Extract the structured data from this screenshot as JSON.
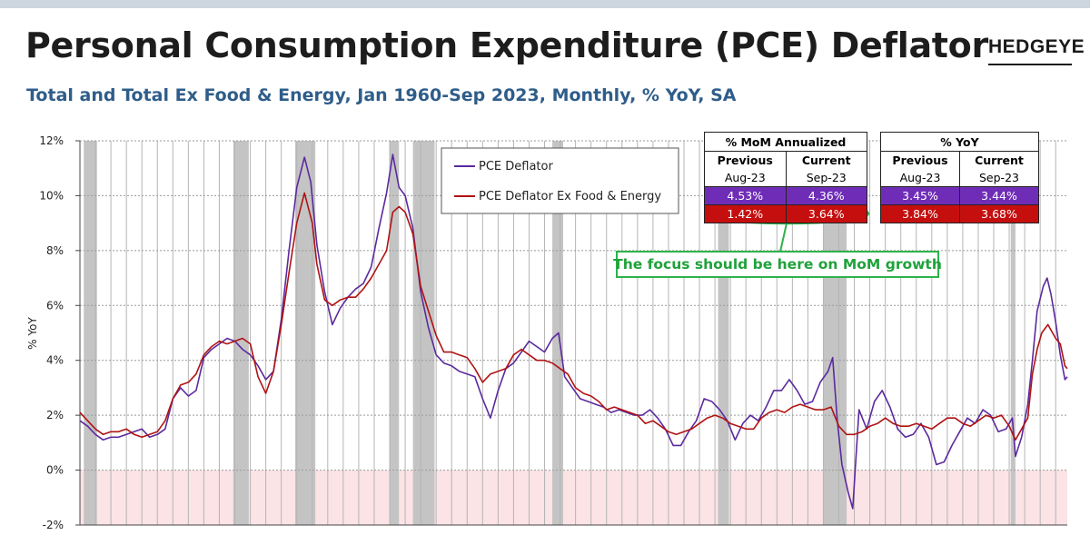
{
  "header": {
    "title": "Personal Consumption Expenditure (PCE) Deflator",
    "subtitle": "Total and Total Ex Food & Energy, Jan 1960-Sep 2023, Monthly, % YoY, SA",
    "logo": "HEDGEYE"
  },
  "colors": {
    "pce": "#5b2a9e",
    "core": "#b01313",
    "recession": "#c4c4c4",
    "negative_zone": "#fbe3e6",
    "callout": "#2db34a",
    "table_purple": "#6f2db7",
    "table_red": "#c50f0f"
  },
  "tables": {
    "mom": {
      "title": "% MoM Annualized",
      "col_previous": "Previous",
      "col_current": "Current",
      "date_previous": "Aug-23",
      "date_current": "Sep-23",
      "pce_previous": "4.53%",
      "pce_current": "4.36%",
      "core_previous": "1.42%",
      "core_current": "3.64%"
    },
    "yoy": {
      "title": "% YoY",
      "col_previous": "Previous",
      "col_current": "Current",
      "date_previous": "Aug-23",
      "date_current": "Sep-23",
      "pce_previous": "3.45%",
      "pce_current": "3.44%",
      "core_previous": "3.84%",
      "core_current": "3.68%"
    }
  },
  "callout": {
    "text": "The focus should be here on MoM growth"
  },
  "chart_data": {
    "type": "line",
    "ylabel": "% YoY",
    "ylim": [
      -2,
      12
    ],
    "y_ticks": [
      "-2%",
      "0%",
      "2%",
      "4%",
      "6%",
      "8%",
      "10%",
      "12%"
    ],
    "y_tick_values": [
      -2,
      0,
      2,
      4,
      6,
      8,
      10,
      12
    ],
    "xlim": [
      1960.0,
      2023.75
    ],
    "grid": true,
    "legend_position": "top-left",
    "negative_zone": [
      -2,
      0
    ],
    "recessions": [
      [
        1960.25,
        1961.1
      ],
      [
        1969.9,
        1970.9
      ],
      [
        1973.9,
        1975.2
      ],
      [
        1980.0,
        1980.6
      ],
      [
        1981.5,
        1982.9
      ],
      [
        1990.5,
        1991.2
      ],
      [
        2001.2,
        2001.9
      ],
      [
        2008.0,
        2009.5
      ],
      [
        2020.1,
        2020.4
      ]
    ],
    "series": [
      {
        "name": "PCE Deflator",
        "x": [
          1960,
          1960.5,
          1961,
          1961.5,
          1962,
          1962.5,
          1963,
          1963.5,
          1964,
          1964.5,
          1965,
          1965.5,
          1966,
          1966.5,
          1967,
          1967.5,
          1968,
          1968.5,
          1969,
          1969.5,
          1970,
          1970.5,
          1971,
          1971.5,
          1972,
          1972.5,
          1973,
          1973.5,
          1974,
          1974.5,
          1974.9,
          1975.3,
          1975.8,
          1976.3,
          1976.8,
          1977.3,
          1977.8,
          1978.3,
          1978.8,
          1979.3,
          1979.8,
          1980.2,
          1980.6,
          1981,
          1981.5,
          1982,
          1982.5,
          1983,
          1983.5,
          1984,
          1984.5,
          1985,
          1985.5,
          1986,
          1986.5,
          1987,
          1987.5,
          1988,
          1988.5,
          1989,
          1989.5,
          1990,
          1990.5,
          1990.9,
          1991.3,
          1991.8,
          1992.3,
          1992.8,
          1993.3,
          1993.8,
          1994.3,
          1994.8,
          1995.3,
          1995.8,
          1996.3,
          1996.8,
          1997.3,
          1997.8,
          1998.3,
          1998.8,
          1999.3,
          1999.8,
          2000.3,
          2000.8,
          2001.3,
          2001.8,
          2002.3,
          2002.8,
          2003.3,
          2003.8,
          2004.3,
          2004.8,
          2005.3,
          2005.8,
          2006.3,
          2006.8,
          2007.3,
          2007.8,
          2008.3,
          2008.6,
          2008.9,
          2009.2,
          2009.6,
          2009.9,
          2010.3,
          2010.8,
          2011.3,
          2011.8,
          2012.3,
          2012.8,
          2013.3,
          2013.8,
          2014.3,
          2014.8,
          2015.3,
          2015.8,
          2016.3,
          2016.8,
          2017.3,
          2017.8,
          2018.3,
          2018.8,
          2019.3,
          2019.8,
          2020.2,
          2020.4,
          2020.8,
          2021.2,
          2021.5,
          2021.8,
          2022.2,
          2022.45,
          2022.7,
          2023.0,
          2023.3,
          2023.6,
          2023.75
        ],
        "values": [
          1.8,
          1.6,
          1.3,
          1.1,
          1.2,
          1.2,
          1.3,
          1.4,
          1.5,
          1.2,
          1.3,
          1.5,
          2.6,
          3.0,
          2.7,
          2.9,
          4.1,
          4.4,
          4.6,
          4.8,
          4.7,
          4.4,
          4.2,
          3.8,
          3.3,
          3.6,
          5.5,
          8.0,
          10.3,
          11.4,
          10.5,
          8.2,
          6.5,
          5.3,
          5.9,
          6.3,
          6.6,
          6.8,
          7.4,
          8.8,
          10.1,
          11.5,
          10.3,
          10.0,
          8.8,
          6.5,
          5.2,
          4.2,
          3.9,
          3.8,
          3.6,
          3.5,
          3.4,
          2.6,
          1.9,
          2.9,
          3.7,
          3.9,
          4.3,
          4.7,
          4.5,
          4.3,
          4.8,
          5.0,
          3.4,
          3.0,
          2.6,
          2.5,
          2.4,
          2.3,
          2.1,
          2.2,
          2.1,
          2.0,
          2.0,
          2.2,
          1.9,
          1.5,
          0.9,
          0.9,
          1.4,
          1.8,
          2.6,
          2.5,
          2.2,
          1.8,
          1.1,
          1.7,
          2.0,
          1.8,
          2.3,
          2.9,
          2.9,
          3.3,
          2.9,
          2.4,
          2.5,
          3.2,
          3.6,
          4.1,
          1.8,
          0.2,
          -0.8,
          -1.4,
          2.2,
          1.5,
          2.5,
          2.9,
          2.3,
          1.5,
          1.2,
          1.3,
          1.7,
          1.2,
          0.2,
          0.3,
          0.9,
          1.4,
          1.9,
          1.7,
          2.2,
          2.0,
          1.4,
          1.5,
          1.9,
          0.5,
          1.2,
          2.4,
          4.0,
          5.8,
          6.7,
          7.0,
          6.4,
          5.4,
          4.2,
          3.3,
          3.4
        ]
      },
      {
        "name": "PCE Deflator Ex Food & Energy",
        "x": [
          1960,
          1960.5,
          1961,
          1961.5,
          1962,
          1962.5,
          1963,
          1963.5,
          1964,
          1964.5,
          1965,
          1965.5,
          1966,
          1966.5,
          1967,
          1967.5,
          1968,
          1968.5,
          1969,
          1969.5,
          1970,
          1970.5,
          1971,
          1971.5,
          1972,
          1972.5,
          1973,
          1973.5,
          1974,
          1974.5,
          1975,
          1975.3,
          1975.8,
          1976.3,
          1976.8,
          1977.3,
          1977.8,
          1978.3,
          1978.8,
          1979.3,
          1979.8,
          1980.2,
          1980.6,
          1981,
          1981.5,
          1982,
          1982.5,
          1983,
          1983.5,
          1984,
          1984.5,
          1985,
          1985.5,
          1986,
          1986.5,
          1987,
          1987.5,
          1988,
          1988.5,
          1989,
          1989.5,
          1990,
          1990.5,
          1991,
          1991.5,
          1992,
          1992.5,
          1993,
          1993.5,
          1994,
          1994.5,
          1995,
          1995.5,
          1996,
          1996.5,
          1997,
          1997.5,
          1998,
          1998.5,
          1999,
          1999.5,
          2000,
          2000.5,
          2001,
          2001.5,
          2002,
          2002.5,
          2003,
          2003.5,
          2004,
          2004.5,
          2005,
          2005.5,
          2006,
          2006.5,
          2007,
          2007.5,
          2008,
          2008.5,
          2009,
          2009.5,
          2010,
          2010.5,
          2011,
          2011.5,
          2012,
          2012.5,
          2013,
          2013.5,
          2014,
          2014.5,
          2015,
          2015.5,
          2016,
          2016.5,
          2017,
          2017.5,
          2018,
          2018.5,
          2019,
          2019.5,
          2020,
          2020.4,
          2020.8,
          2021.2,
          2021.5,
          2021.8,
          2022.1,
          2022.5,
          2022.8,
          2023.0,
          2023.3,
          2023.6,
          2023.75
        ],
        "values": [
          2.1,
          1.8,
          1.5,
          1.3,
          1.4,
          1.4,
          1.5,
          1.3,
          1.2,
          1.3,
          1.4,
          1.8,
          2.6,
          3.1,
          3.2,
          3.5,
          4.2,
          4.5,
          4.7,
          4.6,
          4.7,
          4.8,
          4.6,
          3.4,
          2.8,
          3.6,
          5.3,
          7.2,
          9.0,
          10.1,
          9.0,
          7.5,
          6.2,
          6.0,
          6.2,
          6.3,
          6.3,
          6.6,
          7.0,
          7.5,
          8.0,
          9.4,
          9.6,
          9.4,
          8.6,
          6.7,
          5.8,
          4.9,
          4.3,
          4.3,
          4.2,
          4.1,
          3.7,
          3.2,
          3.5,
          3.6,
          3.7,
          4.2,
          4.4,
          4.2,
          4.0,
          4.0,
          3.9,
          3.7,
          3.5,
          3.0,
          2.8,
          2.7,
          2.5,
          2.2,
          2.3,
          2.2,
          2.1,
          2.0,
          1.7,
          1.8,
          1.6,
          1.4,
          1.3,
          1.4,
          1.5,
          1.7,
          1.9,
          2.0,
          1.9,
          1.7,
          1.6,
          1.5,
          1.5,
          1.9,
          2.1,
          2.2,
          2.1,
          2.3,
          2.4,
          2.3,
          2.2,
          2.2,
          2.3,
          1.6,
          1.3,
          1.3,
          1.4,
          1.6,
          1.7,
          1.9,
          1.7,
          1.6,
          1.6,
          1.7,
          1.6,
          1.5,
          1.7,
          1.9,
          1.9,
          1.7,
          1.6,
          1.8,
          2.0,
          1.9,
          2.0,
          1.6,
          1.1,
          1.5,
          1.9,
          3.5,
          4.4,
          5.0,
          5.3,
          5.0,
          4.8,
          4.6,
          3.8,
          3.7
        ]
      }
    ]
  }
}
